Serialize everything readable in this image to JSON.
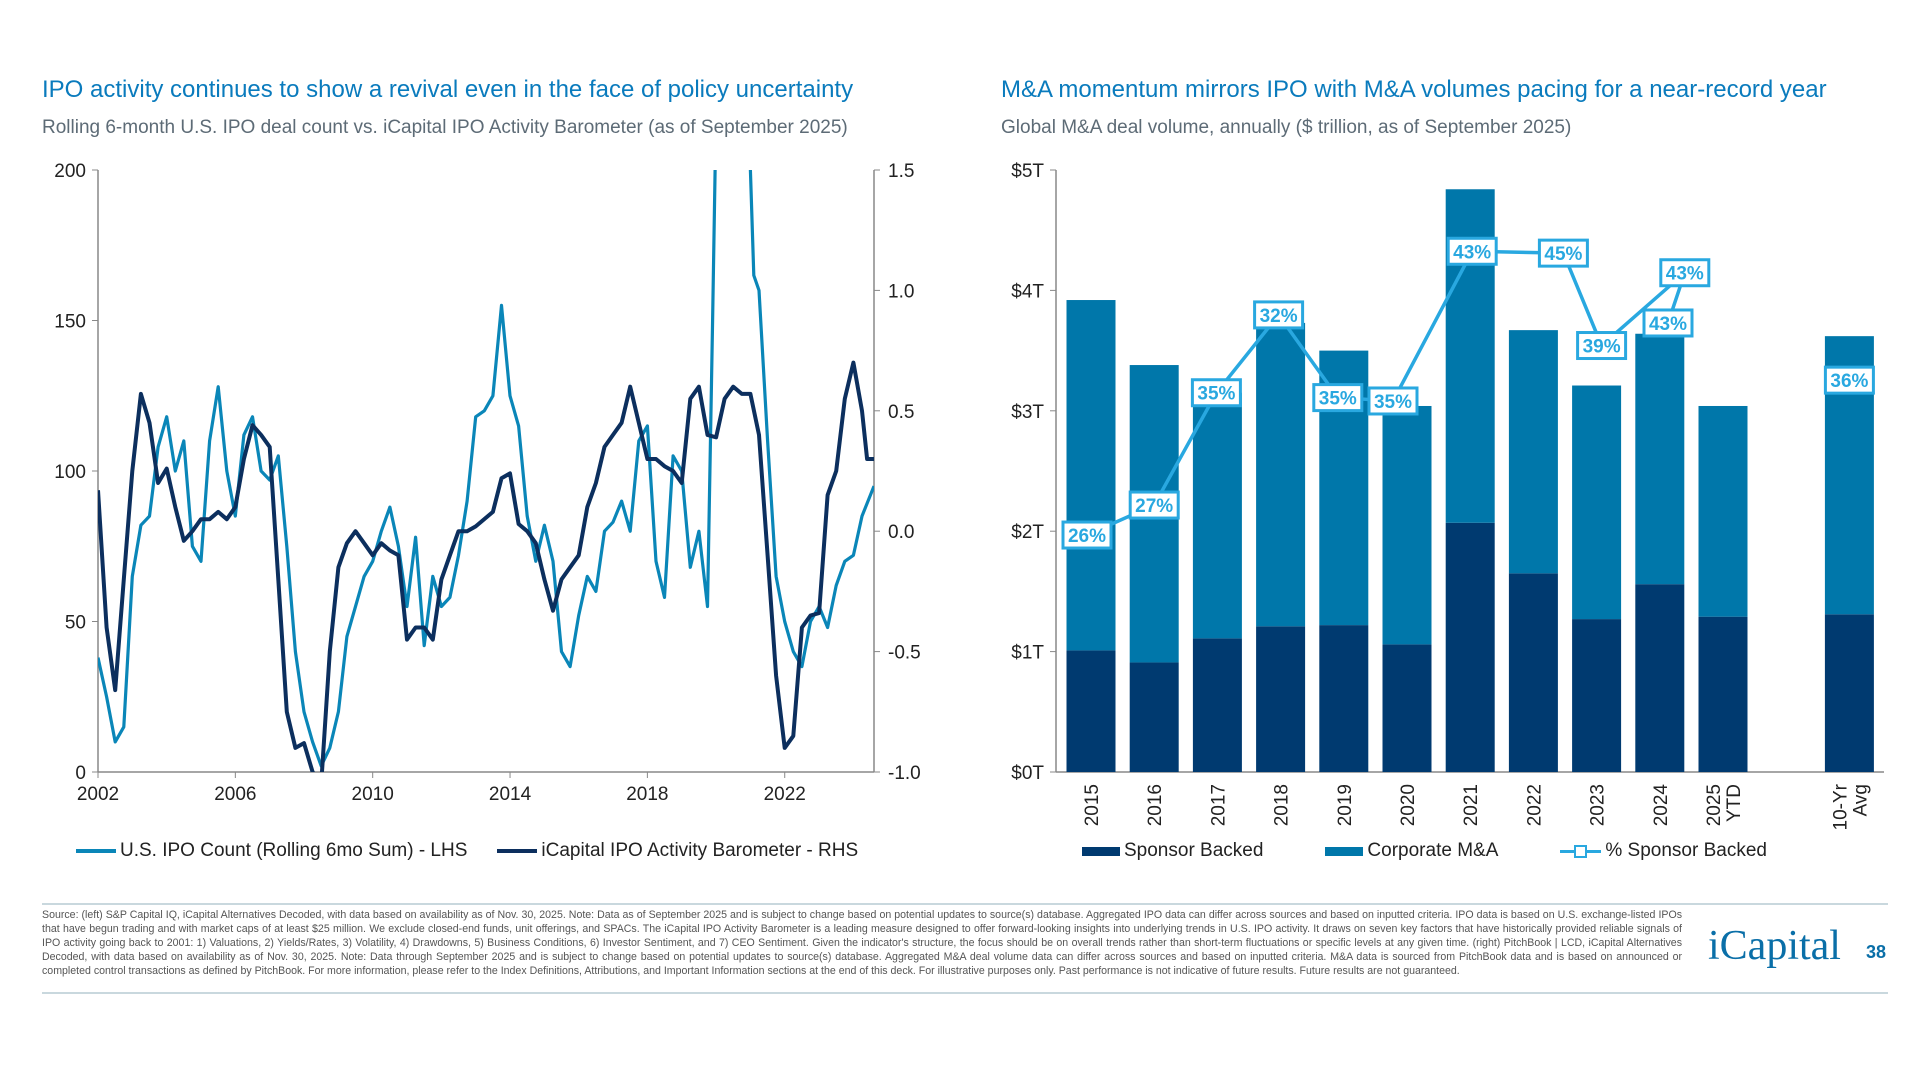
{
  "left": {
    "title": "IPO activity continues to show a revival even in the face of policy uncertainty",
    "subtitle": "Rolling 6-month U.S. IPO deal count vs. iCapital IPO Activity Barometer (as of September 2025)"
  },
  "right": {
    "title": "M&A momentum mirrors IPO with M&A volumes pacing for a near-record year",
    "subtitle": "Global M&A deal volume, annually ($ trillion, as of September 2025)"
  },
  "chart_data": [
    {
      "type": "line",
      "xlim": [
        2002,
        2024.6
      ],
      "x_ticks": [
        "2002",
        "2006",
        "2010",
        "2014",
        "2018",
        "2022"
      ],
      "y_left": {
        "lim": [
          0,
          200
        ],
        "ticks": [
          "0",
          "50",
          "100",
          "150",
          "200"
        ]
      },
      "y_right": {
        "lim": [
          -1.0,
          1.5
        ],
        "ticks": [
          "-1.0",
          "-0.5",
          "0.0",
          "0.5",
          "1.0",
          "1.5"
        ]
      },
      "grid": false,
      "legend": "bottom",
      "series": [
        {
          "name": "U.S. IPO Count (Rolling 6mo Sum) - LHS",
          "axis": "left",
          "color": "#0a86b8",
          "x": [
            2002,
            2002.25,
            2002.5,
            2002.75,
            2003,
            2003.25,
            2003.5,
            2003.75,
            2004,
            2004.25,
            2004.5,
            2004.75,
            2005,
            2005.25,
            2005.5,
            2005.75,
            2006,
            2006.25,
            2006.5,
            2006.75,
            2007,
            2007.25,
            2007.5,
            2007.75,
            2008,
            2008.25,
            2008.5,
            2008.75,
            2009,
            2009.25,
            2009.5,
            2009.75,
            2010,
            2010.25,
            2010.5,
            2010.75,
            2011,
            2011.25,
            2011.5,
            2011.75,
            2012,
            2012.25,
            2012.5,
            2012.75,
            2013,
            2013.25,
            2013.5,
            2013.75,
            2014,
            2014.25,
            2014.5,
            2014.75,
            2015,
            2015.25,
            2015.5,
            2015.75,
            2016,
            2016.25,
            2016.5,
            2016.75,
            2017,
            2017.25,
            2017.5,
            2017.75,
            2018,
            2018.25,
            2018.5,
            2018.75,
            2019,
            2019.25,
            2019.5,
            2019.75,
            2019.9,
            2020,
            2020.5,
            2021,
            2021.1,
            2021.25,
            2021.5,
            2021.75,
            2022,
            2022.25,
            2022.5,
            2022.75,
            2023,
            2023.25,
            2023.5,
            2023.75,
            2024,
            2024.25,
            2024.6
          ],
          "y": [
            38,
            25,
            10,
            15,
            65,
            82,
            85,
            108,
            118,
            100,
            110,
            75,
            70,
            110,
            128,
            100,
            85,
            112,
            118,
            100,
            97,
            105,
            75,
            40,
            20,
            10,
            2,
            8,
            20,
            45,
            55,
            65,
            70,
            80,
            88,
            75,
            55,
            78,
            42,
            65,
            55,
            58,
            72,
            90,
            118,
            120,
            125,
            155,
            125,
            115,
            85,
            70,
            82,
            70,
            40,
            35,
            52,
            65,
            60,
            80,
            83,
            90,
            80,
            110,
            115,
            70,
            58,
            105,
            100,
            68,
            80,
            55,
            150,
            220,
            350,
            200,
            165,
            160,
            110,
            65,
            50,
            40,
            35,
            50,
            55,
            48,
            62,
            70,
            72,
            85,
            95
          ]
        },
        {
          "name": "iCapital IPO Activity Barometer - RHS",
          "axis": "right",
          "color": "#0c2f5e",
          "x": [
            2002,
            2002.25,
            2002.5,
            2002.75,
            2003,
            2003.25,
            2003.5,
            2003.75,
            2004,
            2004.25,
            2004.5,
            2004.75,
            2005,
            2005.25,
            2005.5,
            2005.75,
            2006,
            2006.25,
            2006.5,
            2006.75,
            2007,
            2007.25,
            2007.5,
            2007.75,
            2008,
            2008.25,
            2008.5,
            2008.75,
            2009,
            2009.25,
            2009.5,
            2009.75,
            2010,
            2010.25,
            2010.5,
            2010.75,
            2011,
            2011.25,
            2011.5,
            2011.75,
            2012,
            2012.25,
            2012.5,
            2012.75,
            2013,
            2013.5,
            2013.75,
            2014,
            2014.25,
            2014.5,
            2014.75,
            2015,
            2015.25,
            2015.5,
            2015.75,
            2016,
            2016.25,
            2016.5,
            2016.75,
            2017,
            2017.25,
            2017.5,
            2017.75,
            2018,
            2018.25,
            2018.5,
            2018.75,
            2019,
            2019.25,
            2019.5,
            2019.75,
            2020,
            2020.25,
            2020.5,
            2020.75,
            2021,
            2021.25,
            2021.5,
            2021.75,
            2022,
            2022.25,
            2022.5,
            2022.75,
            2023,
            2023.25,
            2023.5,
            2023.75,
            2024,
            2024.25,
            2024.4,
            2024.6
          ],
          "y": [
            0.17,
            -0.4,
            -0.66,
            -0.2,
            0.25,
            0.57,
            0.45,
            0.2,
            0.26,
            0.1,
            -0.04,
            0.0,
            0.05,
            0.05,
            0.08,
            0.05,
            0.1,
            0.3,
            0.44,
            0.4,
            0.35,
            -0.2,
            -0.75,
            -0.9,
            -0.88,
            -1.0,
            -1.05,
            -0.5,
            -0.15,
            -0.05,
            0.0,
            -0.05,
            -0.1,
            -0.05,
            -0.08,
            -0.1,
            -0.45,
            -0.4,
            -0.4,
            -0.45,
            -0.2,
            -0.1,
            0.0,
            0.0,
            0.02,
            0.08,
            0.22,
            0.24,
            0.03,
            0.0,
            -0.05,
            -0.2,
            -0.33,
            -0.2,
            -0.15,
            -0.1,
            0.1,
            0.2,
            0.35,
            0.4,
            0.45,
            0.6,
            0.45,
            0.3,
            0.3,
            0.27,
            0.25,
            0.2,
            0.55,
            0.6,
            0.4,
            0.39,
            0.55,
            0.6,
            0.57,
            0.57,
            0.4,
            -0.1,
            -0.6,
            -0.9,
            -0.85,
            -0.4,
            -0.35,
            -0.34,
            0.15,
            0.25,
            0.55,
            0.7,
            0.5,
            0.3,
            0.3
          ]
        }
      ]
    },
    {
      "type": "bar",
      "stacked": true,
      "categories": [
        "2015",
        "2016",
        "2017",
        "2018",
        "2019",
        "2020",
        "2021",
        "2022",
        "2023",
        "2024",
        "2025 YTD",
        "10-Yr Avg"
      ],
      "y_ticks": [
        "$0T",
        "$1T",
        "$2T",
        "$3T",
        "$4T",
        "$5T"
      ],
      "ylim": [
        0,
        5
      ],
      "grid": false,
      "legend": "bottom",
      "series": [
        {
          "name": "Sponsor Backed",
          "color": "#003a70",
          "values": [
            1.01,
            0.91,
            1.11,
            1.21,
            1.22,
            1.06,
            2.07,
            1.65,
            1.27,
            1.56,
            1.29,
            1.31
          ]
        },
        {
          "name": "Corporate M&A",
          "color": "#0077aa",
          "values": [
            2.91,
            2.47,
            2.04,
            2.52,
            2.28,
            1.98,
            2.77,
            2.02,
            1.94,
            2.08,
            1.75,
            2.31
          ]
        }
      ],
      "line_series": {
        "name": "% Sponsor Backed",
        "color": "#29a8e0",
        "labels": [
          "26%",
          "27%",
          "35%",
          "32%",
          "35%",
          "35%",
          "43%",
          "45%",
          "39%",
          "43%",
          "43%",
          "36%"
        ]
      }
    }
  ],
  "footnote": "Source: (left) S&P Capital IQ, iCapital Alternatives Decoded, with data based on availability as of Nov. 30, 2025. Note: Data as of September 2025 and is subject to change based on potential updates to source(s) database. Aggregated IPO data can differ across sources and based on inputted criteria. IPO data is based on U.S. exchange-listed IPOs that have begun trading and with market caps of at least $25 million. We exclude closed-end funds, unit offerings, and SPACs. The iCapital IPO Activity Barometer is a leading measure designed to offer forward-looking insights into underlying trends in U.S. IPO activity. It draws on seven key factors that have historically provided reliable signals of IPO activity going back to 2001: 1) Valuations, 2) Yields/Rates, 3) Volatility, 4) Drawdowns, 5) Business Conditions, 6) Investor Sentiment, and 7) CEO Sentiment. Given the indicator's structure, the focus should be on overall trends rather than short-term fluctuations or specific levels at any given time. (right) PitchBook | LCD, iCapital Alternatives Decoded, with data based on availability as of Nov. 30, 2025. Note: Data through September 2025 and is subject to change based on potential updates to source(s) database. Aggregated M&A deal volume data can differ across sources and based on inputted criteria. M&A data is sourced from PitchBook data and is based on announced or completed control transactions as defined by PitchBook. For more information, please refer to the Index Definitions, Attributions, and Important Information sections at the end of this deck. For illustrative purposes only. Past performance is not indicative of future results. Future results are not guaranteed.",
  "logo": "iCapital",
  "page_number": "38"
}
